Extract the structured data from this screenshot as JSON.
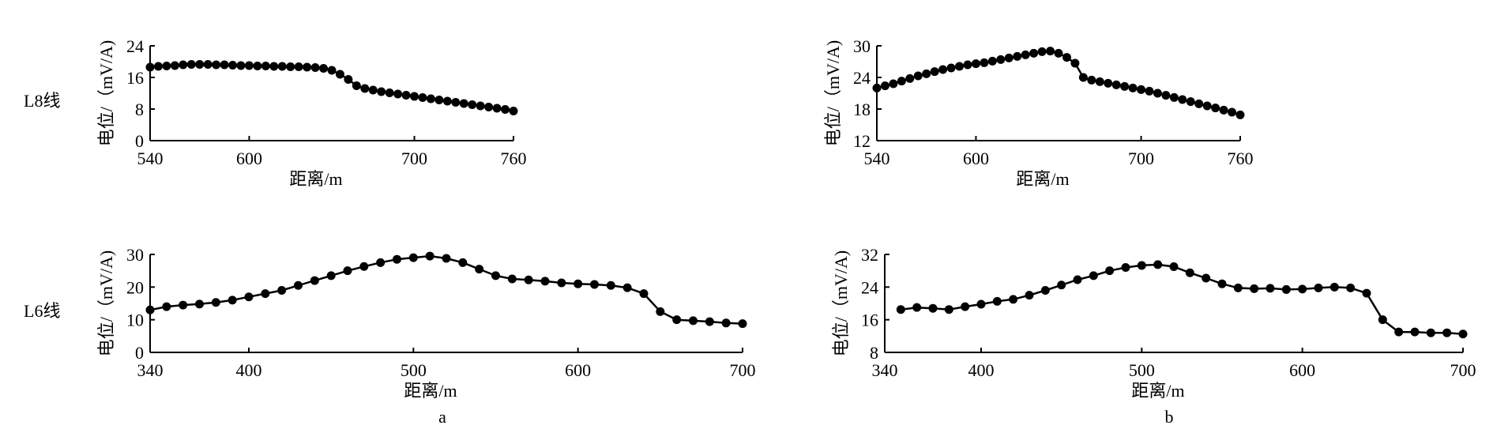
{
  "row_labels": [
    "L8线",
    "L6线"
  ],
  "subfigure_labels": [
    "a",
    "b"
  ],
  "chart_data": [
    {
      "id": "a-L8",
      "type": "line",
      "panel": "a",
      "row": "L8线",
      "xlabel": "距离/m",
      "ylabel": "电位/（mV/A)",
      "xlim": [
        540,
        760
      ],
      "ylim": [
        0,
        24
      ],
      "xticks": [
        540,
        600,
        700,
        760
      ],
      "yticks": [
        0,
        8,
        16,
        24
      ],
      "series": [
        {
          "name": "L8线",
          "x": [
            540,
            545,
            550,
            555,
            560,
            565,
            570,
            575,
            580,
            585,
            590,
            595,
            600,
            605,
            610,
            615,
            620,
            625,
            630,
            635,
            640,
            645,
            650,
            655,
            660,
            665,
            670,
            675,
            680,
            685,
            690,
            695,
            700,
            705,
            710,
            715,
            720,
            725,
            730,
            735,
            740,
            745,
            750,
            755,
            760
          ],
          "y": [
            18.6,
            18.8,
            18.9,
            19.0,
            19.2,
            19.3,
            19.3,
            19.3,
            19.2,
            19.2,
            19.1,
            19.0,
            19.0,
            18.9,
            18.9,
            18.8,
            18.8,
            18.7,
            18.7,
            18.6,
            18.5,
            18.3,
            17.8,
            16.8,
            15.5,
            13.9,
            13.2,
            12.8,
            12.4,
            12.1,
            11.8,
            11.5,
            11.2,
            10.9,
            10.6,
            10.3,
            10.0,
            9.7,
            9.4,
            9.1,
            8.8,
            8.5,
            8.2,
            7.9,
            7.5
          ]
        }
      ]
    },
    {
      "id": "b-L8",
      "type": "line",
      "panel": "b",
      "row": "L8线",
      "xlabel": "距离/m",
      "ylabel": "电位/（mV/A)",
      "xlim": [
        540,
        760
      ],
      "ylim": [
        12,
        30
      ],
      "xticks": [
        540,
        600,
        700,
        760
      ],
      "yticks": [
        12,
        18,
        24,
        30
      ],
      "series": [
        {
          "name": "L8线",
          "x": [
            540,
            545,
            550,
            555,
            560,
            565,
            570,
            575,
            580,
            585,
            590,
            595,
            600,
            605,
            610,
            615,
            620,
            625,
            630,
            635,
            640,
            645,
            650,
            655,
            660,
            665,
            670,
            675,
            680,
            685,
            690,
            695,
            700,
            705,
            710,
            715,
            720,
            725,
            730,
            735,
            740,
            745,
            750,
            755,
            760
          ],
          "y": [
            22.0,
            22.4,
            22.8,
            23.3,
            23.8,
            24.3,
            24.7,
            25.1,
            25.5,
            25.8,
            26.1,
            26.4,
            26.6,
            26.8,
            27.1,
            27.4,
            27.7,
            28.0,
            28.3,
            28.6,
            28.9,
            29.0,
            28.6,
            27.8,
            26.7,
            24.0,
            23.5,
            23.2,
            22.9,
            22.6,
            22.3,
            22.0,
            21.7,
            21.4,
            21.0,
            20.6,
            20.2,
            19.8,
            19.4,
            19.0,
            18.6,
            18.2,
            17.8,
            17.4,
            16.9
          ]
        }
      ]
    },
    {
      "id": "a-L6",
      "type": "line",
      "panel": "a",
      "row": "L6线",
      "xlabel": "距离/m",
      "ylabel": "电位/（mV/A)",
      "xlim": [
        340,
        700
      ],
      "ylim": [
        0,
        30
      ],
      "xticks": [
        340,
        400,
        500,
        600,
        700
      ],
      "yticks": [
        0,
        10,
        20,
        30
      ],
      "series": [
        {
          "name": "L6线",
          "x": [
            340,
            350,
            360,
            370,
            380,
            390,
            400,
            410,
            420,
            430,
            440,
            450,
            460,
            470,
            480,
            490,
            500,
            510,
            520,
            530,
            540,
            550,
            560,
            570,
            580,
            590,
            600,
            610,
            620,
            630,
            640,
            650,
            660,
            670,
            680,
            690,
            700
          ],
          "y": [
            13.0,
            14.0,
            14.5,
            14.8,
            15.3,
            16.0,
            17.0,
            18.0,
            19.0,
            20.5,
            22.0,
            23.5,
            25.0,
            26.3,
            27.5,
            28.5,
            29.0,
            29.5,
            28.8,
            27.5,
            25.5,
            23.5,
            22.5,
            22.2,
            21.8,
            21.3,
            21.0,
            20.8,
            20.5,
            19.8,
            18.0,
            12.5,
            10.0,
            9.7,
            9.4,
            9.0,
            8.8
          ]
        }
      ]
    },
    {
      "id": "b-L6",
      "type": "line",
      "panel": "b",
      "row": "L6线",
      "xlabel": "距离/m",
      "ylabel": "电位/（mV/A)",
      "xlim": [
        340,
        700
      ],
      "ylim": [
        8,
        32
      ],
      "xticks": [
        340,
        400,
        500,
        600,
        700
      ],
      "yticks": [
        8,
        16,
        24,
        32
      ],
      "series": [
        {
          "name": "L6线",
          "x": [
            350,
            360,
            370,
            380,
            390,
            400,
            410,
            420,
            430,
            440,
            450,
            460,
            470,
            480,
            490,
            500,
            510,
            520,
            530,
            540,
            550,
            560,
            570,
            580,
            590,
            600,
            610,
            620,
            630,
            640,
            650,
            660,
            670,
            680,
            690,
            700
          ],
          "y": [
            18.5,
            19.0,
            18.8,
            18.5,
            19.2,
            19.8,
            20.5,
            21.0,
            22.0,
            23.2,
            24.5,
            25.8,
            26.8,
            28.0,
            28.8,
            29.3,
            29.5,
            29.0,
            27.5,
            26.2,
            24.8,
            23.8,
            23.6,
            23.7,
            23.4,
            23.5,
            23.8,
            24.0,
            23.8,
            22.5,
            16.0,
            13.0,
            13.0,
            12.8,
            12.8,
            12.5
          ]
        }
      ]
    }
  ]
}
